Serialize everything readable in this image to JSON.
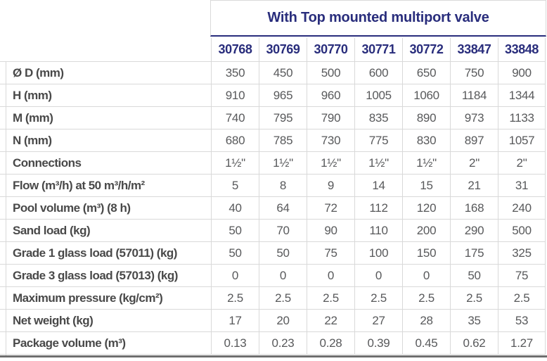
{
  "title": "With Top mounted multiport valve",
  "columns": [
    "30768",
    "30769",
    "30770",
    "30771",
    "30772",
    "33847",
    "33848"
  ],
  "rows": [
    {
      "label": "Ø D (mm)",
      "values": [
        "350",
        "450",
        "500",
        "600",
        "650",
        "750",
        "900"
      ]
    },
    {
      "label": "H (mm)",
      "values": [
        "910",
        "965",
        "960",
        "1005",
        "1060",
        "1184",
        "1344"
      ]
    },
    {
      "label": "M (mm)",
      "values": [
        "740",
        "795",
        "790",
        "835",
        "890",
        "973",
        "1133"
      ]
    },
    {
      "label": "N (mm)",
      "values": [
        "680",
        "785",
        "730",
        "775",
        "830",
        "897",
        "1057"
      ]
    },
    {
      "label": "Connections",
      "values": [
        "1½\"",
        "1½\"",
        "1½\"",
        "1½\"",
        "1½\"",
        "2\"",
        "2\""
      ]
    },
    {
      "label": "Flow (m³/h) at 50 m³/h/m²",
      "values": [
        "5",
        "8",
        "9",
        "14",
        "15",
        "21",
        "31"
      ]
    },
    {
      "label": "Pool volume (m³) (8 h)",
      "values": [
        "40",
        "64",
        "72",
        "112",
        "120",
        "168",
        "240"
      ]
    },
    {
      "label": "Sand load (kg)",
      "values": [
        "50",
        "70",
        "90",
        "110",
        "200",
        "290",
        "500"
      ]
    },
    {
      "label": "Grade 1 glass load (57011) (kg)",
      "values": [
        "50",
        "50",
        "75",
        "100",
        "150",
        "175",
        "325"
      ]
    },
    {
      "label": "Grade 3 glass load (57013) (kg)",
      "values": [
        "0",
        "0",
        "0",
        "0",
        "0",
        "50",
        "75"
      ]
    },
    {
      "label": "Maximum pressure (kg/cm²)",
      "values": [
        "2.5",
        "2.5",
        "2.5",
        "2.5",
        "2.5",
        "2.5",
        "2.5"
      ]
    },
    {
      "label": "Net weight (kg)",
      "values": [
        "17",
        "20",
        "22",
        "27",
        "28",
        "35",
        "53"
      ]
    },
    {
      "label": "Package volume (m³)",
      "values": [
        "0.13",
        "0.23",
        "0.28",
        "0.39",
        "0.45",
        "0.62",
        "1.27"
      ]
    }
  ],
  "colors": {
    "navy": "#292d7c",
    "label": "#494949",
    "value": "#58595b",
    "grid": "#d9d9d9",
    "bottom": "#6e6e6e"
  }
}
